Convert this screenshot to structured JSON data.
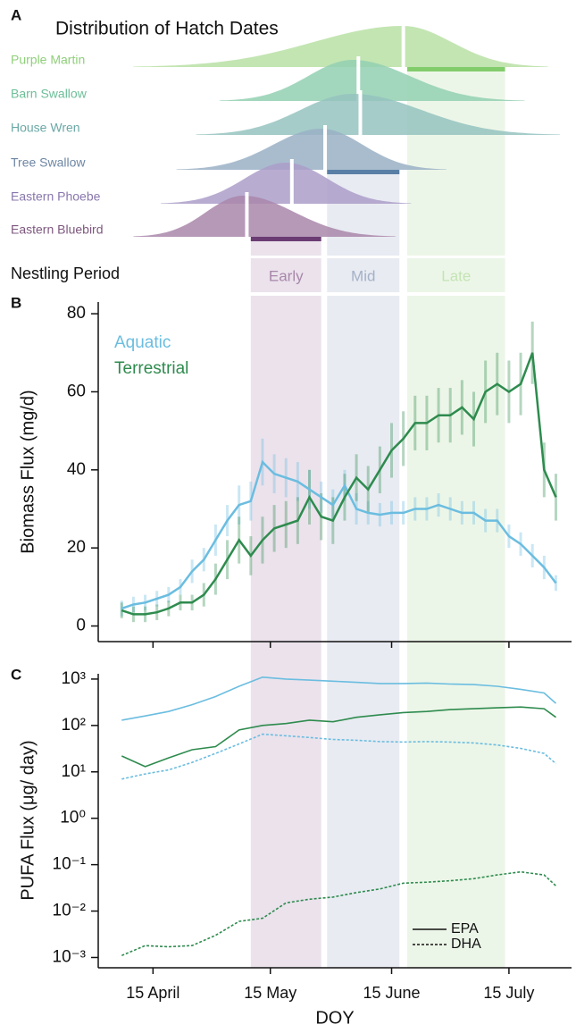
{
  "chart_data": [
    {
      "type": "ridge",
      "panel": "A",
      "title": "Distribution of Hatch Dates",
      "period_label": "Nestling Period",
      "species": [
        {
          "name": "Purple Martin",
          "color": "#b8e0a4",
          "text_color": "#8fcf7a",
          "start": 100,
          "peak": 169,
          "end": 206,
          "median": 169,
          "nestling": [
            170,
            195
          ],
          "bar_color": "#82cc6c"
        },
        {
          "name": "Barn Swallow",
          "color": "#93d0b2",
          "text_color": "#6dbf98",
          "start": 122,
          "peak": 156,
          "end": 200,
          "median": 157.5
        },
        {
          "name": "House Wren",
          "color": "#95c3c0",
          "text_color": "#6aa9a6",
          "start": 116,
          "peak": 156,
          "end": 209,
          "median": 158
        },
        {
          "name": "Tree Swallow",
          "color": "#9ab0c6",
          "text_color": "#6d86a3",
          "start": 111,
          "peak": 148,
          "end": 180,
          "median": 149,
          "nestling": [
            149.5,
            168
          ],
          "bar_color": "#5a7fa6"
        },
        {
          "name": "Eastern Phoebe",
          "color": "#ab9dc9",
          "text_color": "#8877ad",
          "start": 107,
          "peak": 139,
          "end": 171,
          "median": 140.5
        },
        {
          "name": "Eastern Bluebird",
          "color": "#a986aa",
          "text_color": "#7e587f",
          "start": 100,
          "peak": 128,
          "end": 167,
          "median": 129,
          "nestling": [
            130,
            148
          ],
          "bar_color": "#6b3c73"
        }
      ],
      "periods": [
        {
          "name": "Early",
          "start": 130,
          "end": 148,
          "color": "#ebe2ec",
          "text_color": "#a887aa"
        },
        {
          "name": "Mid",
          "start": 149.5,
          "end": 168,
          "color": "#e8ebf2",
          "text_color": "#a5b1c7"
        },
        {
          "name": "Late",
          "start": 170,
          "end": 195,
          "color": "#ecf6e8",
          "text_color": "#c4e4b4"
        }
      ]
    },
    {
      "type": "line",
      "panel": "B",
      "y_label": "Biomass Flux (mg/d)",
      "ylim": [
        -4,
        83
      ],
      "yticks": [
        0,
        20,
        40,
        60,
        80
      ],
      "x": [
        97,
        100,
        103,
        106,
        109,
        112,
        115,
        118,
        121,
        124,
        127,
        130,
        133,
        136,
        139,
        142,
        145,
        148,
        151,
        154,
        157,
        160,
        163,
        166,
        169,
        172,
        175,
        178,
        181,
        184,
        187,
        190,
        193,
        196,
        199,
        202,
        205,
        208
      ],
      "series": [
        {
          "name": "Aquatic",
          "color": "#6bbde0",
          "values": [
            4.5,
            5.5,
            6,
            7,
            8,
            10,
            14,
            17,
            22,
            27,
            31,
            32,
            42,
            39,
            38,
            37,
            35,
            33,
            31,
            36,
            30,
            29,
            28.5,
            29,
            29,
            30,
            30,
            31,
            30,
            29,
            29,
            27,
            27,
            23,
            21,
            18,
            15,
            11
          ],
          "errors": [
            2,
            2,
            2,
            2,
            2,
            2,
            3,
            3,
            4,
            4,
            5,
            5,
            6,
            5,
            5,
            5,
            5,
            4,
            4,
            4,
            4,
            3,
            3,
            3,
            3,
            3,
            3,
            3,
            3,
            3,
            3,
            3,
            3,
            3,
            3,
            3,
            3,
            2
          ]
        },
        {
          "name": "Terrestrial",
          "color": "#2e8b4e",
          "values": [
            4,
            3,
            3,
            3.5,
            4.5,
            6,
            6,
            8,
            12,
            17,
            22,
            18,
            22,
            25,
            26,
            27,
            33,
            28,
            27,
            33,
            38,
            35,
            40,
            45,
            48,
            52,
            52,
            54,
            54,
            56,
            53,
            60,
            62,
            60,
            62,
            70,
            40,
            33
          ],
          "errors": [
            2,
            2,
            2,
            2,
            2,
            2,
            2,
            3,
            4,
            5,
            6,
            5,
            6,
            6,
            6,
            6,
            7,
            6,
            6,
            6,
            6,
            6,
            6,
            7,
            7,
            7,
            7,
            7,
            7,
            7,
            7,
            8,
            8,
            8,
            8,
            8,
            7,
            6
          ]
        }
      ]
    },
    {
      "type": "line",
      "panel": "C",
      "y_label": "PUFA Flux (μg/ day)",
      "x_label": "DOY",
      "log_y": true,
      "xlim": [
        91,
        212
      ],
      "xticks": [
        {
          "value": 105,
          "label": "15 April"
        },
        {
          "value": 135,
          "label": "15 May"
        },
        {
          "value": 166,
          "label": "15 June"
        },
        {
          "value": 196,
          "label": "15 July"
        }
      ],
      "ylim": [
        0.0006,
        1300
      ],
      "yticks": [
        {
          "value": 0.001,
          "label": "10⁻³"
        },
        {
          "value": 0.01,
          "label": "10⁻²"
        },
        {
          "value": 0.1,
          "label": "10⁻¹"
        },
        {
          "value": 1,
          "label": "10⁰"
        },
        {
          "value": 10,
          "label": "10¹"
        },
        {
          "value": 100,
          "label": "10²"
        },
        {
          "value": 1000,
          "label": "10³"
        }
      ],
      "x": [
        97,
        103,
        109,
        115,
        121,
        127,
        133,
        139,
        145,
        151,
        157,
        163,
        169,
        175,
        181,
        187,
        193,
        199,
        205,
        208
      ],
      "legend": [
        {
          "name": "EPA",
          "dash": "solid"
        },
        {
          "name": "DHA",
          "dash": "dotted"
        }
      ],
      "series": [
        {
          "color": "#6bbde0",
          "dash": "solid",
          "values": [
            130,
            160,
            200,
            280,
            420,
            700,
            1100,
            1000,
            950,
            900,
            850,
            800,
            800,
            820,
            780,
            760,
            700,
            600,
            500,
            300
          ]
        },
        {
          "color": "#6bbde0",
          "dash": "dotted",
          "values": [
            7,
            9,
            11,
            16,
            25,
            40,
            65,
            60,
            55,
            50,
            48,
            45,
            44,
            45,
            44,
            42,
            38,
            32,
            25,
            15
          ]
        },
        {
          "color": "#2e8b4e",
          "dash": "solid",
          "values": [
            22,
            13,
            20,
            30,
            35,
            80,
            100,
            110,
            130,
            120,
            150,
            170,
            190,
            200,
            220,
            230,
            240,
            250,
            230,
            150
          ]
        },
        {
          "color": "#2e8b4e",
          "dash": "dotted",
          "values": [
            0.0011,
            0.0018,
            0.0017,
            0.0018,
            0.003,
            0.006,
            0.007,
            0.015,
            0.018,
            0.02,
            0.025,
            0.03,
            0.04,
            0.042,
            0.045,
            0.05,
            0.06,
            0.07,
            0.06,
            0.035
          ]
        }
      ]
    }
  ]
}
